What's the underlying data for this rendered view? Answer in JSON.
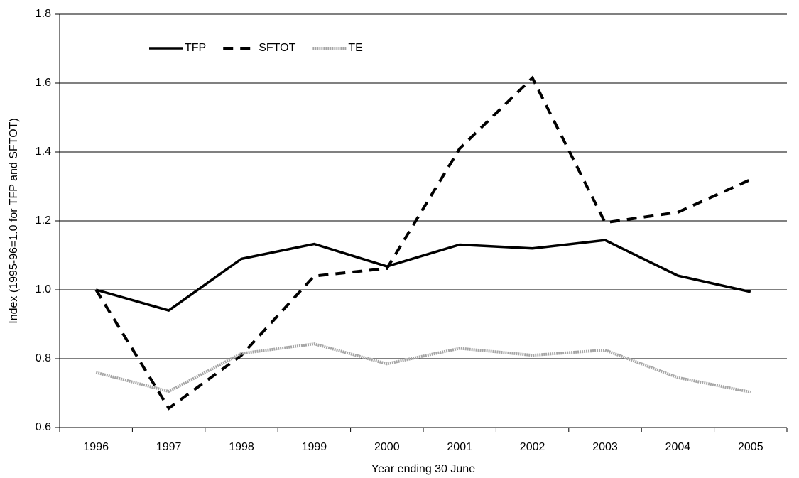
{
  "chart_data": {
    "type": "line",
    "x_label": "Year ending 30 June",
    "y_label": "Index (1995-96=1.0 for TFP and SFTOT)",
    "categories": [
      "1996",
      "1997",
      "1998",
      "1999",
      "2000",
      "2001",
      "2002",
      "2003",
      "2004",
      "2005"
    ],
    "series": [
      {
        "name": "TFP",
        "color": "#000000",
        "line_style": "solid",
        "values": [
          1.0,
          0.94,
          1.09,
          1.133,
          1.068,
          1.131,
          1.12,
          1.144,
          1.041,
          0.994
        ]
      },
      {
        "name": "SFTOT",
        "color": "#000000",
        "line_style": "dashed",
        "values": [
          1.0,
          0.656,
          0.81,
          1.04,
          1.062,
          1.41,
          1.615,
          1.195,
          1.225,
          1.32
        ]
      },
      {
        "name": "TE",
        "color": "#a6a6a6",
        "line_style": "dotted",
        "values": [
          0.76,
          0.705,
          0.815,
          0.843,
          0.785,
          0.83,
          0.81,
          0.825,
          0.745,
          0.703
        ]
      }
    ],
    "ylim": [
      0.6,
      1.8
    ],
    "yticks": [
      {
        "value": 0.6,
        "label": "0.6"
      },
      {
        "value": 0.8,
        "label": "0.8"
      },
      {
        "value": 1.0,
        "label": "1.0"
      },
      {
        "value": 1.2,
        "label": "1.2"
      },
      {
        "value": 1.4,
        "label": "1.4"
      },
      {
        "value": 1.6,
        "label": "1.6"
      },
      {
        "value": 1.8,
        "label": "1.8"
      }
    ],
    "grid": true,
    "legend_position": "top-left"
  }
}
